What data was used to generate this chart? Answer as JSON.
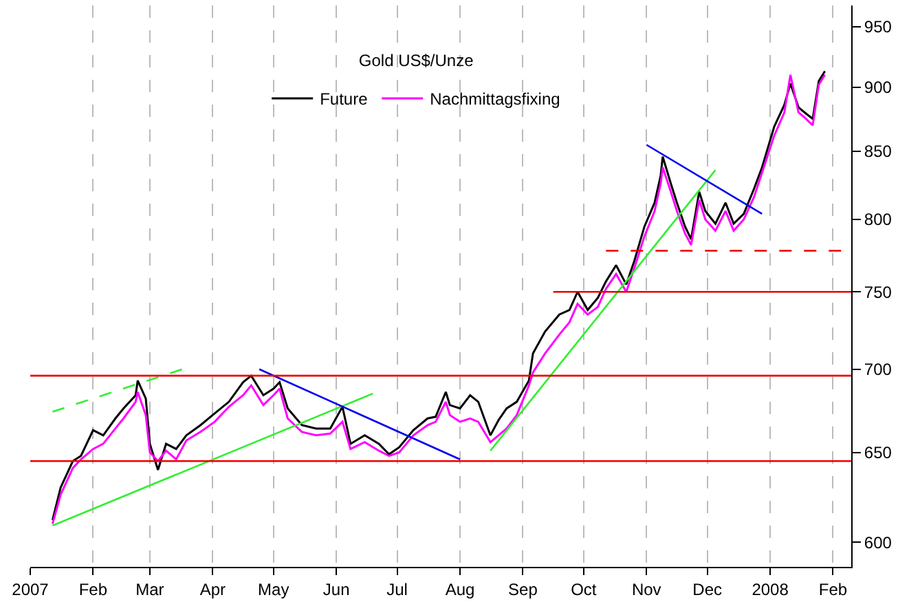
{
  "chart_data": {
    "type": "line",
    "title": "Gold US$/Unze",
    "x": [
      "2007-01-12",
      "2007-01-16",
      "2007-01-22",
      "2007-01-26",
      "2007-02-01",
      "2007-02-06",
      "2007-02-12",
      "2007-02-16",
      "2007-02-22",
      "2007-02-23",
      "2007-02-27",
      "2007-03-01",
      "2007-03-05",
      "2007-03-09",
      "2007-03-14",
      "2007-03-19",
      "2007-03-26",
      "2007-04-02",
      "2007-04-09",
      "2007-04-16",
      "2007-04-20",
      "2007-04-26",
      "2007-05-01",
      "2007-05-04",
      "2007-05-08",
      "2007-05-15",
      "2007-05-22",
      "2007-05-29",
      "2007-06-04",
      "2007-06-08",
      "2007-06-15",
      "2007-06-22",
      "2007-06-27",
      "2007-07-02",
      "2007-07-09",
      "2007-07-16",
      "2007-07-20",
      "2007-07-25",
      "2007-07-27",
      "2007-08-01",
      "2007-08-06",
      "2007-08-10",
      "2007-08-16",
      "2007-08-20",
      "2007-08-24",
      "2007-08-29",
      "2007-09-04",
      "2007-09-06",
      "2007-09-12",
      "2007-09-19",
      "2007-09-24",
      "2007-09-28",
      "2007-10-03",
      "2007-10-08",
      "2007-10-12",
      "2007-10-17",
      "2007-10-22",
      "2007-10-26",
      "2007-10-31",
      "2007-11-05",
      "2007-11-08",
      "2007-11-09",
      "2007-11-13",
      "2007-11-16",
      "2007-11-20",
      "2007-11-23",
      "2007-11-27",
      "2007-11-30",
      "2007-12-05",
      "2007-12-10",
      "2007-12-14",
      "2007-12-19",
      "2007-12-24",
      "2007-12-28",
      "2008-01-03",
      "2008-01-08",
      "2008-01-11",
      "2008-01-15",
      "2008-01-18",
      "2008-01-22",
      "2008-01-25",
      "2008-01-28"
    ],
    "series": [
      {
        "name": "Future",
        "color": "#000000",
        "values": [
          612,
          630,
          645,
          648,
          663,
          660,
          670,
          676,
          684,
          693,
          682,
          655,
          640,
          655,
          652,
          660,
          666,
          673,
          680,
          692,
          696,
          684,
          688,
          692,
          676,
          666,
          664,
          664,
          677,
          655,
          660,
          655,
          649,
          653,
          663,
          670,
          671,
          686,
          678,
          676,
          684,
          680,
          660,
          669,
          676,
          680,
          693,
          710,
          724,
          735,
          738,
          750,
          738,
          746,
          757,
          768,
          755,
          771,
          795,
          812,
          832,
          846,
          826,
          812,
          795,
          786,
          820,
          806,
          797,
          812,
          797,
          804,
          822,
          838,
          869,
          886,
          903,
          884,
          880,
          875,
          905,
          913
        ]
      },
      {
        "name": "Nachmittagsfixing",
        "color": "#ff00ff",
        "values": [
          610,
          626,
          641,
          646,
          652,
          655,
          664,
          670,
          680,
          686,
          672,
          650,
          645,
          651,
          646,
          657,
          662,
          668,
          677,
          684,
          690,
          678,
          684,
          688,
          670,
          662,
          660,
          661,
          668,
          652,
          656,
          651,
          648,
          650,
          660,
          666,
          668,
          680,
          672,
          668,
          670,
          668,
          656,
          660,
          664,
          672,
          690,
          698,
          710,
          722,
          730,
          742,
          735,
          740,
          752,
          762,
          750,
          766,
          788,
          806,
          826,
          838,
          820,
          806,
          790,
          782,
          814,
          800,
          792,
          806,
          792,
          800,
          816,
          834,
          862,
          880,
          910,
          880,
          876,
          870,
          902,
          910
        ]
      },
      {
        "type": "line",
        "color": "#33ee33",
        "x": [
          "2007-01-12",
          "2007-06-19"
        ],
        "values": [
          609,
          685
        ]
      },
      {
        "type": "line",
        "color": "#33ee33",
        "line_style": "dashed",
        "x": [
          "2007-01-12",
          "2007-03-17"
        ],
        "values": [
          674,
          700
        ]
      },
      {
        "type": "line",
        "color": "#33ee33",
        "x": [
          "2007-08-16",
          "2007-12-05"
        ],
        "values": [
          651,
          836
        ]
      },
      {
        "type": "line",
        "color": "#0000ee",
        "x": [
          "2007-04-24",
          "2007-08-01"
        ],
        "values": [
          700,
          646
        ]
      },
      {
        "type": "line",
        "color": "#0000ee",
        "x": [
          "2007-11-01",
          "2007-12-28"
        ],
        "values": [
          855,
          804
        ]
      },
      {
        "type": "line",
        "color": "#ee0000",
        "x": [
          "2007-09-16",
          "2008-02-10"
        ],
        "values": [
          750,
          750
        ]
      },
      {
        "type": "line",
        "color": "#ee0000",
        "line_style": "dashed",
        "x": [
          "2007-10-12",
          "2008-02-10"
        ],
        "values": [
          778,
          778
        ]
      }
    ],
    "ref_lines": [
      {
        "axis": "y",
        "value": 645,
        "color": "#ee0000"
      },
      {
        "axis": "y",
        "value": 696,
        "color": "#ee0000"
      }
    ],
    "log": "y",
    "xlim": [
      "2007-01-01",
      "2008-02-10"
    ],
    "xticks": [
      {
        "value": "2007-01-01",
        "label": "2007"
      },
      {
        "value": "2007-02-01",
        "label": "Feb"
      },
      {
        "value": "2007-03-01",
        "label": "Mar"
      },
      {
        "value": "2007-04-01",
        "label": "Apr"
      },
      {
        "value": "2007-05-01",
        "label": "May"
      },
      {
        "value": "2007-06-01",
        "label": "Jun"
      },
      {
        "value": "2007-07-01",
        "label": "Jul"
      },
      {
        "value": "2007-08-01",
        "label": "Aug"
      },
      {
        "value": "2007-09-01",
        "label": "Sep"
      },
      {
        "value": "2007-10-01",
        "label": "Oct"
      },
      {
        "value": "2007-11-01",
        "label": "Nov"
      },
      {
        "value": "2007-12-01",
        "label": "Dec"
      },
      {
        "value": "2008-01-01",
        "label": "2008"
      },
      {
        "value": "2008-02-01",
        "label": "Feb"
      }
    ],
    "ylim": [
      587,
      968
    ],
    "yticks": [
      600,
      650,
      700,
      750,
      800,
      850,
      900,
      950
    ],
    "grid": "x",
    "legend": "top"
  }
}
